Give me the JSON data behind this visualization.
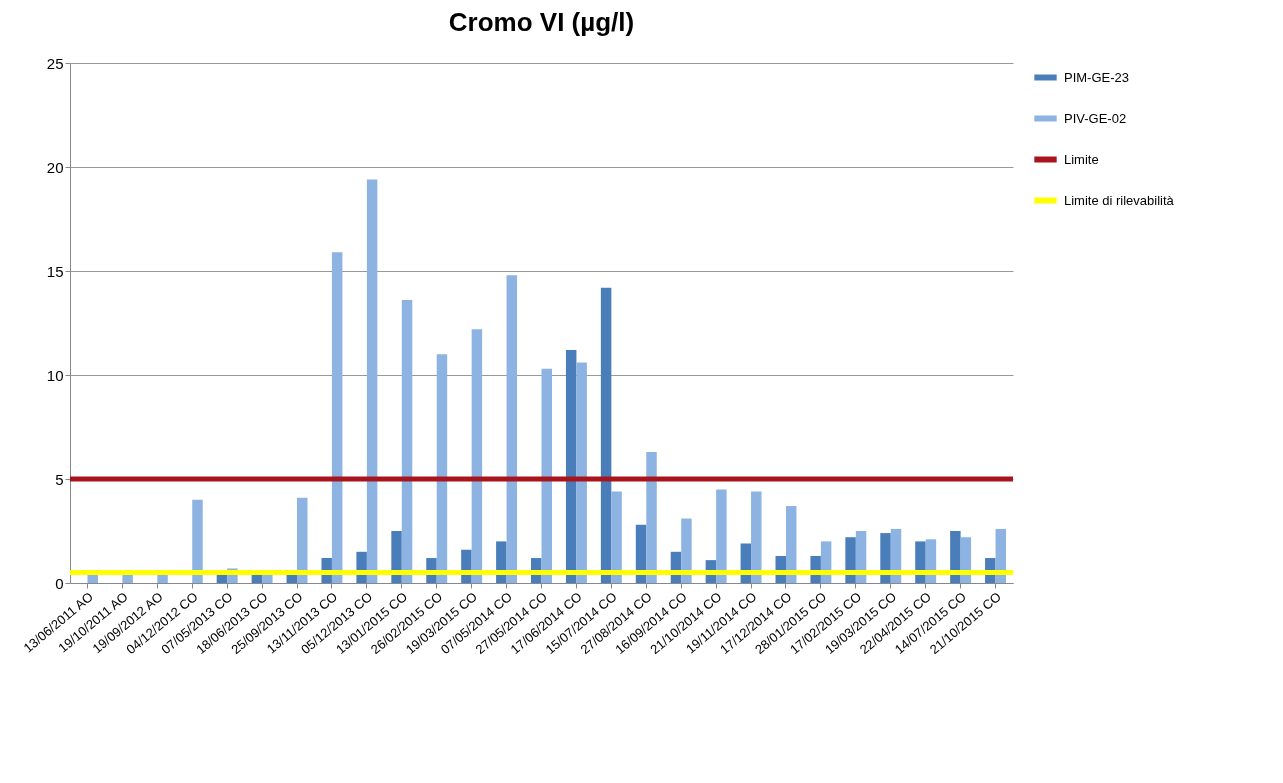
{
  "chart_data": {
    "type": "bar",
    "title": "Cromo VI (µg/l)",
    "categories": [
      "13/06/2011 AO",
      "19/10/2011 AO",
      "19/09/2012 AO",
      "04/12/2012 CO",
      "07/05/2013 CO",
      "18/06/2013 CO",
      "25/09/2013 CO",
      "13/11/2013 CO",
      "05/12/2013 CO",
      "13/01/2015 CO",
      "26/02/2015 CO",
      "19/03/2015 CO",
      "07/05/2014 CO",
      "27/05/2014 CO",
      "17/06/2014 CO",
      "15/07/2014 CO",
      "27/08/2014 CO",
      "16/09/2014 CO",
      "21/10/2014 CO",
      "19/11/2014 CO",
      "17/12/2014 CO",
      "28/01/2015 CO",
      "17/02/2015 CO",
      "19/03/2015 CO",
      "22/04/2015 CO",
      "14/07/2015 CO",
      "21/10/2015 CO"
    ],
    "series": [
      {
        "name": "PIM-GE-23",
        "color": "#4a7ebb",
        "values": [
          null,
          null,
          null,
          null,
          0.5,
          0.5,
          0.5,
          1.2,
          1.5,
          2.5,
          1.2,
          1.6,
          2.0,
          1.2,
          11.2,
          14.2,
          2.8,
          1.5,
          1.1,
          1.9,
          1.3,
          1.3,
          2.2,
          2.4,
          2.0,
          2.5,
          1.2
        ]
      },
      {
        "name": "PIV-GE-02",
        "color": "#8db3e2",
        "values": [
          0.5,
          0.5,
          0.5,
          4.0,
          0.7,
          0.5,
          4.1,
          15.9,
          19.4,
          13.6,
          11.0,
          12.2,
          14.8,
          10.3,
          10.6,
          4.4,
          6.3,
          3.1,
          4.5,
          4.4,
          3.7,
          2.0,
          2.5,
          2.6,
          2.1,
          2.2,
          2.6
        ]
      }
    ],
    "ref_lines": [
      {
        "axis": "y",
        "value": 5,
        "label": "Limite",
        "color": "#a8141c"
      },
      {
        "axis": "y",
        "value": 0.5,
        "label": "Limite di rilevabilità",
        "color": "#ffff00"
      }
    ],
    "ylim": [
      0,
      25
    ],
    "yticks": [
      0,
      5,
      10,
      15,
      20,
      25
    ],
    "grid": "y",
    "legend": "right"
  }
}
